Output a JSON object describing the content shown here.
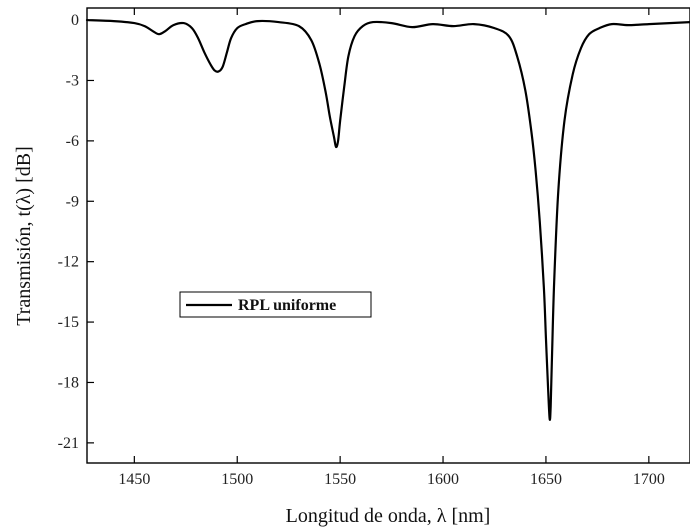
{
  "chart_data": {
    "type": "line",
    "title": "",
    "xlabel": "Longitud de onda, λ [nm]",
    "ylabel": "Transmisión, t(λ) [dB]",
    "xlim": [
      1427,
      1720
    ],
    "ylim": [
      -22,
      0.6
    ],
    "x_ticks": [
      1450,
      1500,
      1550,
      1600,
      1650,
      1700
    ],
    "x_tick_labels": [
      "1450",
      "1500",
      "1550",
      "1600",
      "1650",
      "1700"
    ],
    "y_ticks": [
      0,
      -3,
      -6,
      -9,
      -12,
      -15,
      -18,
      -21
    ],
    "y_tick_labels": [
      "0",
      "-3",
      "-6",
      "-9",
      "-12",
      "-15",
      "-18",
      "-21"
    ],
    "grid": false,
    "legend_position": "center-left",
    "series": [
      {
        "name": "RPL uniforme",
        "color": "#000000",
        "x": [
          1427,
          1440,
          1450,
          1455,
          1459,
          1462,
          1465,
          1469,
          1474,
          1478,
          1481,
          1484,
          1487,
          1489,
          1491,
          1493,
          1495,
          1497,
          1500,
          1504,
          1510,
          1520,
          1530,
          1536,
          1540,
          1543,
          1545,
          1547,
          1548,
          1549,
          1550,
          1552,
          1554,
          1557,
          1561,
          1566,
          1575,
          1585,
          1595,
          1605,
          1615,
          1625,
          1632,
          1636,
          1640,
          1643,
          1645,
          1647,
          1649,
          1650,
          1651,
          1651.8,
          1652.3,
          1653,
          1654,
          1656,
          1659,
          1663,
          1667,
          1671,
          1676,
          1682,
          1690,
          1700,
          1710,
          1720
        ],
        "y": [
          0,
          -0.05,
          -0.15,
          -0.3,
          -0.55,
          -0.7,
          -0.55,
          -0.25,
          -0.15,
          -0.4,
          -0.9,
          -1.6,
          -2.2,
          -2.5,
          -2.55,
          -2.3,
          -1.6,
          -0.9,
          -0.4,
          -0.2,
          -0.05,
          -0.1,
          -0.3,
          -1.0,
          -2.2,
          -3.6,
          -4.8,
          -5.8,
          -6.3,
          -6.0,
          -5.0,
          -3.3,
          -1.8,
          -0.8,
          -0.3,
          -0.1,
          -0.15,
          -0.35,
          -0.2,
          -0.3,
          -0.2,
          -0.4,
          -0.8,
          -1.8,
          -3.5,
          -5.6,
          -7.5,
          -10.0,
          -13.3,
          -15.8,
          -18.2,
          -19.8,
          -19.2,
          -16.5,
          -13.0,
          -8.5,
          -5.0,
          -2.7,
          -1.4,
          -0.7,
          -0.4,
          -0.2,
          -0.25,
          -0.2,
          -0.15,
          -0.1
        ]
      }
    ]
  }
}
